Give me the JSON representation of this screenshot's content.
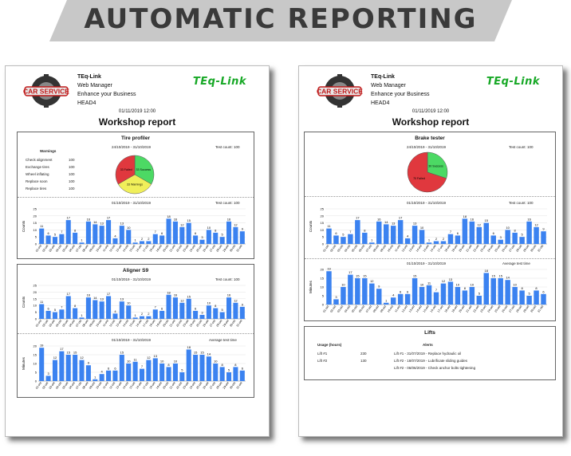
{
  "banner": {
    "title": "AUTOMATIC REPORTING"
  },
  "colors": {
    "bar": "#3b82f0",
    "success": "#4cd964",
    "failed": "#e0383e",
    "warnings": "#f0ef5a",
    "brand": "#17a826"
  },
  "pages": [
    {
      "logo_text": "CAR SERVICE",
      "company": {
        "name": "TEq-Link",
        "line2": "Web Manager",
        "line3": "Enhance your Business",
        "line4": "HEAD4"
      },
      "brand": "TEq-Link",
      "date": "01/11/2019 12:00",
      "title": "Workshop report",
      "sections": [
        {
          "title": "Tire profiler",
          "period": "24/10/2019 - 31/10/2019",
          "test_count": "Test count: 100",
          "warnings_title": "Warnings",
          "warnings": [
            {
              "label": "Check alignment",
              "value": "100"
            },
            {
              "label": "Exchange tires",
              "value": "100"
            },
            {
              "label": "Wheel inflating",
              "value": "100"
            },
            {
              "label": "Replace soon",
              "value": "100"
            },
            {
              "label": "Replace tires",
              "value": "100"
            }
          ],
          "pie": {
            "slices": [
              {
                "label": "33 Success",
                "value": 33,
                "color": "#4cd964"
              },
              {
                "label": "33 Warnings",
                "value": 33,
                "color": "#f0ef5a"
              },
              {
                "label": "33 Failed",
                "value": 33,
                "color": "#e0383e"
              }
            ]
          },
          "bar": {
            "period": "01/10/2019 - 31/10/2019",
            "right_label": "Test count: 100",
            "ylabel": "Counts",
            "ymax": 25,
            "yticks": [
              0,
              5,
              10,
              15,
              20,
              25
            ],
            "values": [
              11,
              6,
              5,
              7,
              17,
              8,
              1,
              16,
              14,
              13,
              17,
              4,
              13,
              10,
              1,
              2,
              2,
              7,
              6,
              18,
              16,
              12,
              15,
              6,
              3,
              10,
              8,
              5,
              16,
              12,
              9
            ]
          }
        },
        {
          "title": "Aligner S9",
          "bar": {
            "period": "01/10/2019 - 31/10/2019",
            "right_label": "Test count: 100",
            "ylabel": "Counts",
            "ymax": 25,
            "yticks": [
              0,
              5,
              10,
              15,
              20,
              25
            ],
            "values": [
              11,
              6,
              5,
              7,
              17,
              8,
              1,
              16,
              14,
              13,
              17,
              4,
              13,
              10,
              1,
              2,
              2,
              7,
              6,
              18,
              16,
              12,
              15,
              6,
              3,
              10,
              8,
              5,
              16,
              12,
              9
            ]
          },
          "bar2": {
            "period": "01/10/2019 - 31/10/2019",
            "right_label": "Average test time",
            "ylabel": "Minutes",
            "ymax": 20,
            "yticks": [
              0,
              5,
              10,
              15,
              20
            ],
            "values": [
              19,
              3,
              12,
              17,
              15,
              15,
              12,
              9,
              1,
              4,
              6,
              6,
              15,
              10,
              11,
              7,
              12,
              13,
              10,
              8,
              10,
              5,
              18,
              15,
              15,
              14,
              10,
              8,
              5,
              8,
              6
            ]
          }
        }
      ]
    },
    {
      "logo_text": "CAR SERVICE",
      "company": {
        "name": "TEq-Link",
        "line2": "Web Manager",
        "line3": "Enhance your Business",
        "line4": "HEAD4"
      },
      "brand": "TEq-Link",
      "date": "01/11/2019 12:00",
      "title": "Workshop report",
      "sections": [
        {
          "title": "Brake tester",
          "period": "24/10/2019 - 31/10/2019",
          "test_count": "Test count: 100",
          "pie": {
            "slices": [
              {
                "label": "30 Success",
                "value": 30,
                "color": "#4cd964"
              },
              {
                "label": "70 Failed",
                "value": 70,
                "color": "#e0383e"
              }
            ]
          },
          "bar": {
            "period": "01/10/2019 - 31/10/2019",
            "right_label": "Test count: 100",
            "ylabel": "Counts",
            "ymax": 25,
            "yticks": [
              0,
              5,
              10,
              15,
              20,
              25
            ],
            "values": [
              11,
              6,
              5,
              7,
              17,
              8,
              1,
              16,
              14,
              13,
              17,
              4,
              13,
              10,
              1,
              2,
              2,
              7,
              6,
              18,
              16,
              12,
              15,
              6,
              3,
              10,
              8,
              5,
              16,
              12,
              9
            ]
          },
          "bar2": {
            "period": "01/10/2019 - 31/10/2019",
            "right_label": "Average test time",
            "ylabel": "Minutes",
            "ymax": 20,
            "yticks": [
              0,
              5,
              10,
              15,
              20
            ],
            "values": [
              19,
              3,
              10,
              17,
              15,
              15,
              12,
              9,
              1,
              4,
              6,
              6,
              15,
              10,
              11,
              7,
              12,
              13,
              10,
              8,
              10,
              5,
              18,
              15,
              15,
              14,
              10,
              8,
              5,
              8,
              6
            ]
          }
        },
        {
          "title": "Lifts",
          "usage_header": "Usage (hours)",
          "alerts_header": "Alerts",
          "rows": [
            {
              "name": "Lift #1",
              "hours": "230",
              "alert": "Lift #1 - 31/07/2019 - Replace hydraulic oil"
            },
            {
              "name": "Lift #2",
              "hours": "130",
              "alert": "Lift #2 - 18/07/2019 - Lubrificate sliding guides"
            },
            {
              "name": "",
              "hours": "",
              "alert": "Lift #2 - 06/06/2019 - Check anchor bolts tightening"
            }
          ]
        }
      ]
    }
  ],
  "chart_data": [
    {
      "type": "pie",
      "title": "Tire profiler",
      "categories": [
        "Success",
        "Warnings",
        "Failed"
      ],
      "values": [
        33,
        33,
        33
      ]
    },
    {
      "type": "bar",
      "title": "Tire profiler",
      "ylabel": "Counts",
      "ylim": [
        0,
        25
      ],
      "x": [
        "01-oct",
        "02-oct",
        "03-oct",
        "04-oct",
        "05-oct",
        "06-oct",
        "07-oct",
        "08-oct",
        "09-oct",
        "10-oct",
        "11-oct",
        "12-oct",
        "13-oct",
        "14-oct",
        "15-oct",
        "16-oct",
        "17-oct",
        "18-oct",
        "19-oct",
        "20-oct",
        "21-oct",
        "22-oct",
        "23-oct",
        "24-oct",
        "25-oct",
        "26-oct",
        "27-oct",
        "28-oct",
        "29-oct",
        "30-oct",
        "31-oct"
      ],
      "values": [
        11,
        6,
        5,
        7,
        17,
        8,
        1,
        16,
        14,
        13,
        17,
        4,
        13,
        10,
        1,
        2,
        2,
        7,
        6,
        18,
        16,
        12,
        15,
        6,
        3,
        10,
        8,
        5,
        16,
        12,
        9
      ]
    },
    {
      "type": "bar",
      "title": "Aligner S9",
      "ylabel": "Counts",
      "ylim": [
        0,
        25
      ],
      "values": [
        11,
        6,
        5,
        7,
        17,
        8,
        1,
        16,
        14,
        13,
        17,
        4,
        13,
        10,
        1,
        2,
        2,
        7,
        6,
        18,
        16,
        12,
        15,
        6,
        3,
        10,
        8,
        5,
        16,
        12,
        9
      ]
    },
    {
      "type": "bar",
      "title": "Average test time",
      "ylabel": "Minutes",
      "ylim": [
        0,
        20
      ],
      "values": [
        19,
        3,
        12,
        17,
        15,
        15,
        12,
        9,
        1,
        4,
        6,
        6,
        15,
        10,
        11,
        7,
        12,
        13,
        10,
        8,
        10,
        5,
        18,
        15,
        15,
        14,
        10,
        8,
        5,
        8,
        6
      ]
    },
    {
      "type": "pie",
      "title": "Brake tester",
      "categories": [
        "Success",
        "Failed"
      ],
      "values": [
        30,
        70
      ]
    },
    {
      "type": "bar",
      "title": "Brake tester",
      "ylabel": "Counts",
      "ylim": [
        0,
        25
      ],
      "values": [
        11,
        6,
        5,
        7,
        17,
        8,
        1,
        16,
        14,
        13,
        17,
        4,
        13,
        10,
        1,
        2,
        2,
        7,
        6,
        18,
        16,
        12,
        15,
        6,
        3,
        10,
        8,
        5,
        16,
        12,
        9
      ]
    },
    {
      "type": "bar",
      "title": "Average test time",
      "ylabel": "Minutes",
      "ylim": [
        0,
        20
      ],
      "values": [
        19,
        3,
        10,
        17,
        15,
        15,
        12,
        9,
        1,
        4,
        6,
        6,
        15,
        10,
        11,
        7,
        12,
        13,
        10,
        8,
        10,
        5,
        18,
        15,
        15,
        14,
        10,
        8,
        5,
        8,
        6
      ]
    }
  ]
}
